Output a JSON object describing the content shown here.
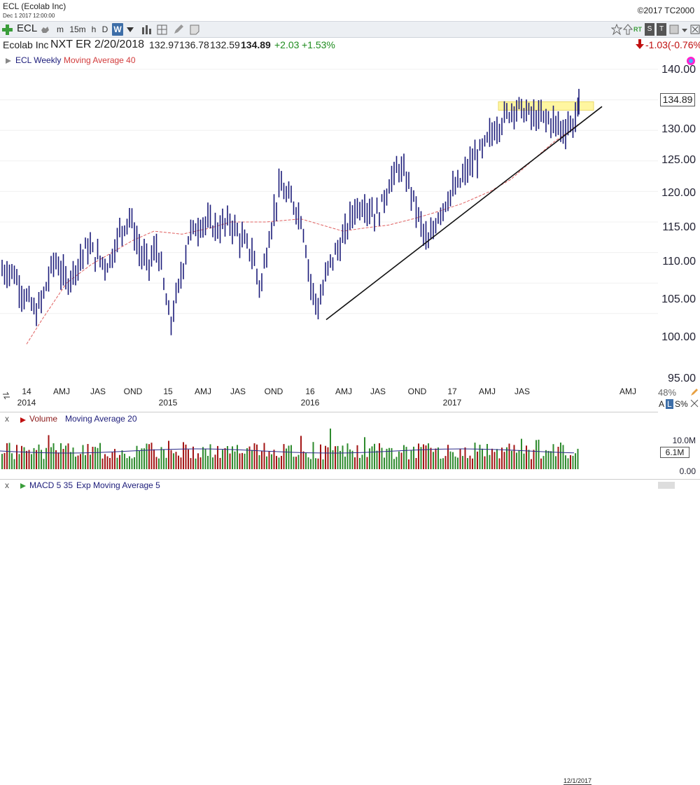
{
  "window": {
    "title": "ECL (Ecolab Inc)",
    "subtitle": "Dec 1 2017 12:00:00",
    "copyright": "©2017 TC2000"
  },
  "toolbar": {
    "symbol": "ECL",
    "timeframes": [
      "m",
      "15m",
      "h",
      "D",
      "W"
    ],
    "active_timeframe": "W",
    "right_labels": [
      "RT",
      "S",
      "T"
    ]
  },
  "quote": {
    "name": "Ecolab Inc",
    "next_earnings": "NXT ER 2/20/2018",
    "open": "132.97",
    "high": "136.78",
    "low": "132.59",
    "close": "134.89",
    "change": "+2.03",
    "change_pct": "+1.53%",
    "after_change": "-1.03(-0.76%)"
  },
  "legend": {
    "series": "ECL Weekly",
    "indicator": "Moving Average 40"
  },
  "price_axis": {
    "labels": [
      "140.00",
      "135.00",
      "130.00",
      "125.00",
      "120.00",
      "115.00",
      "110.00",
      "105.00",
      "100.00",
      "95.00"
    ],
    "last": "134.89"
  },
  "time_axis": {
    "labels": [
      {
        "top": "14",
        "bottom": "2014"
      },
      {
        "top": "AMJ",
        "bottom": ""
      },
      {
        "top": "JAS",
        "bottom": ""
      },
      {
        "top": "OND",
        "bottom": ""
      },
      {
        "top": "15",
        "bottom": "2015"
      },
      {
        "top": "AMJ",
        "bottom": ""
      },
      {
        "top": "JAS",
        "bottom": ""
      },
      {
        "top": "OND",
        "bottom": ""
      },
      {
        "top": "16",
        "bottom": "2016"
      },
      {
        "top": "AMJ",
        "bottom": ""
      },
      {
        "top": "JAS",
        "bottom": ""
      },
      {
        "top": "OND",
        "bottom": ""
      },
      {
        "top": "17",
        "bottom": "2017"
      },
      {
        "top": "AMJ",
        "bottom": ""
      },
      {
        "top": "JAS",
        "bottom": ""
      },
      {
        "top": "AMJ",
        "bottom": ""
      }
    ],
    "current_date": "12/1/2017"
  },
  "volume": {
    "title": "Volume",
    "indicator": "Moving Average 20",
    "axis_labels": [
      "10.0M",
      "6.1M",
      "0.00"
    ],
    "last": "6.1M"
  },
  "macd": {
    "title": "MACD 5 35",
    "indicator": "Exp Moving Average 5"
  },
  "right_misc": {
    "pct": "48%",
    "letters": [
      "A",
      "L",
      "S%"
    ]
  },
  "colors": {
    "price_bar": "#1c1c7a",
    "ma": "#e06060",
    "up_vol": "#2e8b2e",
    "down_vol": "#a31515",
    "zone": "#fff6a0",
    "accent": "#3d6ea8"
  }
}
